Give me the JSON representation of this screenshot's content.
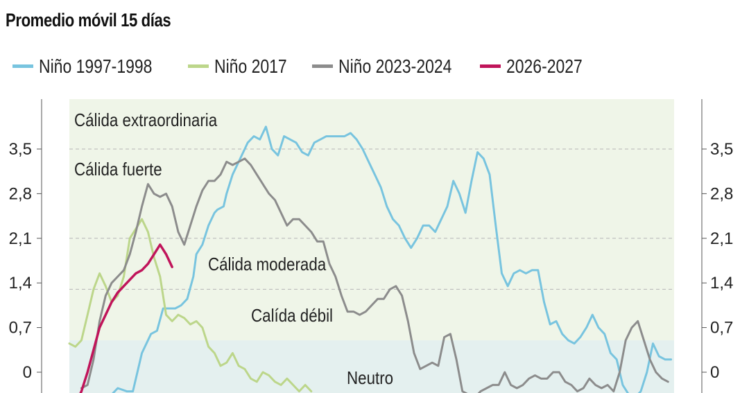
{
  "chart_data": {
    "type": "line",
    "title": "Promedio móvil 15 días",
    "ylim": [
      -0.35,
      4.2
    ],
    "yticks": [
      0,
      0.7,
      1.4,
      2.1,
      2.8,
      3.5
    ],
    "ytick_labels": [
      "0",
      "0,7",
      "1,4",
      "2,1",
      "2,8",
      "3,5"
    ],
    "xlim": [
      0,
      200
    ],
    "zones": [
      {
        "label": "Neutro",
        "from": -0.5,
        "to": 0.5,
        "color": "#e4f0ef",
        "label_x": 95,
        "label_y": 0.0
      },
      {
        "label": "Calída débil",
        "from": 0.5,
        "to": 1.0,
        "color": "#eff5e8",
        "label_x": 95,
        "label_y": 0.8
      },
      {
        "label": "Cálida moderada",
        "from": 1.0,
        "to": 1.5,
        "color": "#eff5e8",
        "label_x": 95,
        "label_y": 1.6
      },
      {
        "label": "Cálida fuerte",
        "from": 1.5,
        "to": 2.0,
        "color": "#eff5e8",
        "label_x": 13,
        "label_y": 3.2
      },
      {
        "label": "Cálida extraordinaria",
        "from": 2.0,
        "to": 4.2,
        "color": "#eff5e8",
        "label_x": 13,
        "label_y": 3.95
      }
    ],
    "zone_boundaries": [
      0.5,
      1.0,
      1.5,
      2.0,
      4.2
    ],
    "gridlines": [
      1.3,
      2.1,
      3.5
    ],
    "series": [
      {
        "name": "Niño 1997-1998",
        "color": "#78c4df",
        "x": [
          10,
          13,
          16,
          19,
          21,
          24,
          27,
          29,
          31,
          33,
          35,
          37,
          39,
          41,
          42,
          44,
          46,
          48,
          49,
          51,
          52,
          54,
          56,
          58,
          59,
          61,
          63,
          65,
          67,
          69,
          71,
          73,
          75,
          77,
          79,
          81,
          83,
          85,
          87,
          89,
          91,
          93,
          95,
          97,
          99,
          101,
          103,
          105,
          107,
          109,
          111,
          113,
          115,
          117,
          119,
          121,
          123,
          125,
          127,
          129,
          131,
          133,
          135,
          137,
          139,
          141,
          143,
          145,
          147,
          149,
          151,
          153,
          155,
          157,
          159,
          161,
          163,
          165,
          167,
          169,
          171,
          173,
          175,
          177,
          179,
          181,
          183,
          185,
          187,
          189,
          191,
          193,
          195,
          197,
          199
        ],
        "y": [
          -0.5,
          -0.4,
          -0.25,
          -0.3,
          -0.3,
          0.3,
          0.6,
          0.65,
          1.0,
          1.0,
          1.0,
          1.05,
          1.15,
          1.5,
          1.85,
          2.0,
          2.3,
          2.5,
          2.55,
          2.6,
          2.8,
          3.1,
          3.3,
          3.5,
          3.6,
          3.7,
          3.65,
          3.85,
          3.5,
          3.4,
          3.7,
          3.65,
          3.6,
          3.45,
          3.4,
          3.6,
          3.65,
          3.7,
          3.7,
          3.7,
          3.7,
          3.75,
          3.65,
          3.5,
          3.3,
          3.1,
          2.9,
          2.6,
          2.4,
          2.3,
          2.1,
          1.95,
          2.1,
          2.3,
          2.3,
          2.2,
          2.4,
          2.6,
          3.0,
          2.8,
          2.5,
          3.0,
          3.45,
          3.35,
          3.1,
          2.3,
          1.55,
          1.35,
          1.55,
          1.6,
          1.55,
          1.6,
          1.6,
          1.1,
          0.75,
          0.8,
          0.6,
          0.5,
          0.45,
          0.55,
          0.7,
          0.9,
          0.7,
          0.6,
          0.3,
          0.2,
          -0.2,
          -0.35,
          -0.4,
          -0.3,
          0.0,
          0.45,
          0.25,
          0.2,
          0.2
        ]
      },
      {
        "name": "Niño 2017",
        "color": "#bcd68a",
        "x": [
          0,
          2,
          4,
          6,
          8,
          10,
          12,
          14,
          16,
          18,
          20,
          22,
          24,
          26,
          28,
          30,
          32,
          34,
          36,
          38,
          40,
          42,
          44,
          46,
          48,
          50,
          52,
          54,
          56,
          58,
          60,
          62,
          64,
          66,
          68,
          70,
          72,
          74,
          76,
          78,
          80
        ],
        "y": [
          0.45,
          0.4,
          0.5,
          0.9,
          1.3,
          1.55,
          1.35,
          1.1,
          1.2,
          1.5,
          2.1,
          2.25,
          2.4,
          2.2,
          1.8,
          1.5,
          0.9,
          0.8,
          0.9,
          0.85,
          0.75,
          0.8,
          0.7,
          0.4,
          0.3,
          0.1,
          0.15,
          0.3,
          0.1,
          0.05,
          -0.1,
          -0.15,
          0.0,
          -0.05,
          -0.15,
          -0.2,
          -0.1,
          -0.2,
          -0.3,
          -0.2,
          -0.3
        ]
      },
      {
        "name": "Niño 2023-2024",
        "color": "#8c8c8c",
        "x": [
          4,
          6,
          8,
          10,
          12,
          14,
          16,
          18,
          20,
          22,
          24,
          26,
          28,
          30,
          32,
          34,
          36,
          38,
          40,
          42,
          44,
          46,
          48,
          50,
          52,
          54,
          56,
          58,
          60,
          62,
          64,
          66,
          68,
          70,
          72,
          74,
          76,
          78,
          80,
          82,
          84,
          86,
          88,
          90,
          92,
          94,
          96,
          98,
          100,
          102,
          104,
          106,
          108,
          110,
          112,
          114,
          116,
          118,
          120,
          122,
          124,
          126,
          128,
          130,
          132,
          134,
          136,
          138,
          140,
          142,
          144,
          146,
          148,
          150,
          152,
          154,
          156,
          158,
          160,
          162,
          164,
          166,
          168,
          170,
          172,
          174,
          176,
          178,
          180,
          182,
          184,
          186,
          188,
          190,
          192,
          194,
          196,
          198
        ],
        "y": [
          -0.25,
          -0.2,
          0.2,
          0.8,
          1.2,
          1.4,
          1.5,
          1.6,
          1.85,
          2.2,
          2.6,
          2.95,
          2.8,
          2.75,
          2.8,
          2.6,
          2.2,
          2.0,
          2.3,
          2.6,
          2.85,
          3.0,
          3.0,
          3.1,
          3.3,
          3.25,
          3.3,
          3.35,
          3.25,
          3.1,
          2.95,
          2.8,
          2.7,
          2.5,
          2.3,
          2.4,
          2.4,
          2.3,
          2.2,
          2.05,
          2.05,
          1.7,
          1.5,
          1.2,
          0.95,
          0.95,
          0.9,
          0.95,
          1.05,
          1.15,
          1.15,
          1.3,
          1.35,
          1.2,
          0.8,
          0.3,
          0.05,
          0.1,
          0.15,
          0.1,
          0.55,
          0.6,
          0.2,
          -0.3,
          -0.35,
          -0.4,
          -0.3,
          -0.25,
          -0.2,
          -0.2,
          0.0,
          -0.2,
          -0.25,
          -0.2,
          -0.1,
          -0.05,
          -0.1,
          -0.1,
          0.0,
          0.0,
          -0.15,
          -0.2,
          -0.3,
          -0.25,
          -0.1,
          -0.2,
          -0.25,
          -0.2,
          -0.3,
          0.0,
          0.5,
          0.7,
          0.8,
          0.5,
          0.2,
          0.0,
          -0.1,
          -0.15
        ]
      },
      {
        "name": "2026-2027",
        "color": "#c0145a",
        "x": [
          0,
          2,
          4,
          6,
          8,
          10,
          12,
          14,
          16,
          18,
          20,
          22,
          24,
          26,
          28,
          30,
          32,
          34
        ],
        "y": [
          -0.6,
          -0.5,
          -0.3,
          0.0,
          0.35,
          0.7,
          0.9,
          1.1,
          1.25,
          1.35,
          1.45,
          1.55,
          1.6,
          1.7,
          1.85,
          2.0,
          1.85,
          1.65
        ]
      }
    ]
  }
}
